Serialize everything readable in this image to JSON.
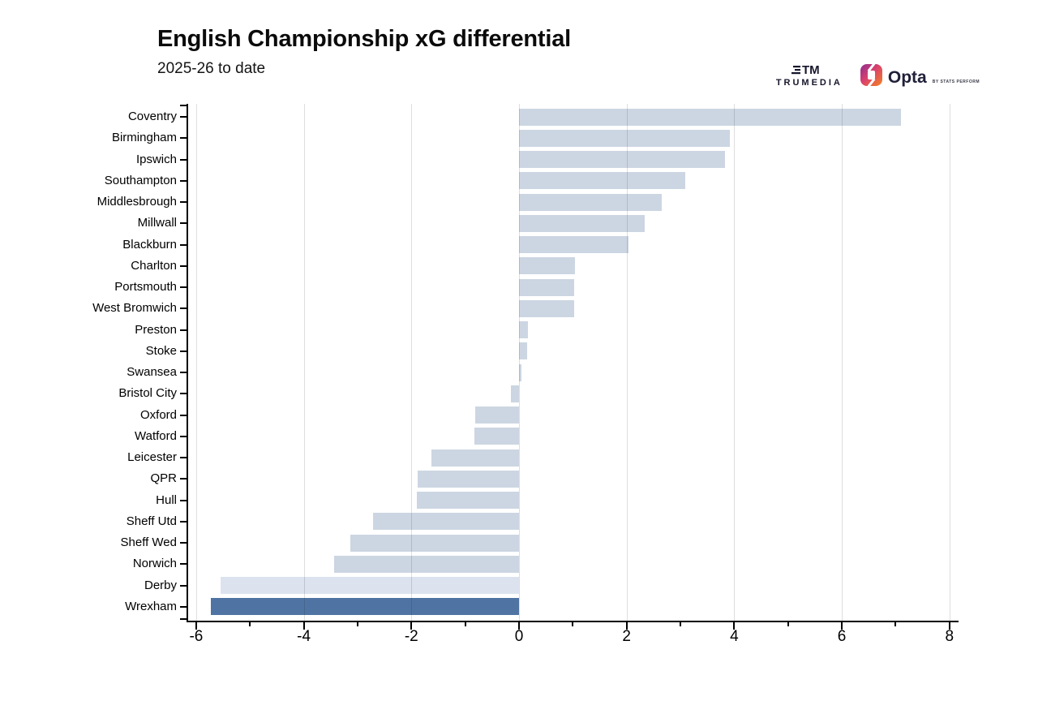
{
  "header": {
    "title": "English Championship xG differential",
    "subtitle": "2025-26 to date"
  },
  "branding": {
    "trumedia": {
      "monogram": "TM",
      "label": "TRUMEDIA"
    },
    "opta": {
      "label": "Opta",
      "sublabel": "BY STATS PERFORM"
    }
  },
  "chart_data": {
    "type": "bar",
    "orientation": "horizontal",
    "title": "English Championship xG differential",
    "subtitle": "2025-26 to date",
    "xlabel": "",
    "ylabel": "",
    "xlim": [
      -6.15,
      8.2
    ],
    "grid": "vertical",
    "legend": "none",
    "x_ticks_labeled": [
      -6,
      -4,
      -2,
      0,
      2,
      4,
      6,
      8
    ],
    "x_ticks_minor": [
      -5,
      -3,
      -1,
      1,
      3,
      5,
      7
    ],
    "gridlines_at": [
      -6,
      -4,
      -2,
      0,
      2,
      4,
      6,
      8
    ],
    "categories": [
      "Coventry",
      "Birmingham",
      "Ipswich",
      "Southampton",
      "Middlesbrough",
      "Millwall",
      "Blackburn",
      "Charlton",
      "Portsmouth",
      "West Bromwich",
      "Preston",
      "Stoke",
      "Swansea",
      "Bristol City",
      "Oxford",
      "Watford",
      "Leicester",
      "QPR",
      "Hull",
      "Sheff Utd",
      "Sheff Wed",
      "Norwich",
      "Derby",
      "Wrexham"
    ],
    "values": [
      7.1,
      3.92,
      3.83,
      3.09,
      2.65,
      2.33,
      2.03,
      1.04,
      1.03,
      1.02,
      0.16,
      0.15,
      0.04,
      -0.15,
      -0.81,
      -0.83,
      -1.63,
      -1.88,
      -1.9,
      -2.71,
      -3.14,
      -3.44,
      -5.54,
      -5.73
    ],
    "bar_styles": {
      "Derby": "light",
      "Wrexham": "highlight"
    },
    "colors": {
      "bar_default": "#ccd6e2",
      "bar_light": "#dce3ee",
      "bar_highlight": "#4f74a3",
      "gridline": "#dddddd",
      "axis": "#000000",
      "text": "#000000"
    }
  }
}
